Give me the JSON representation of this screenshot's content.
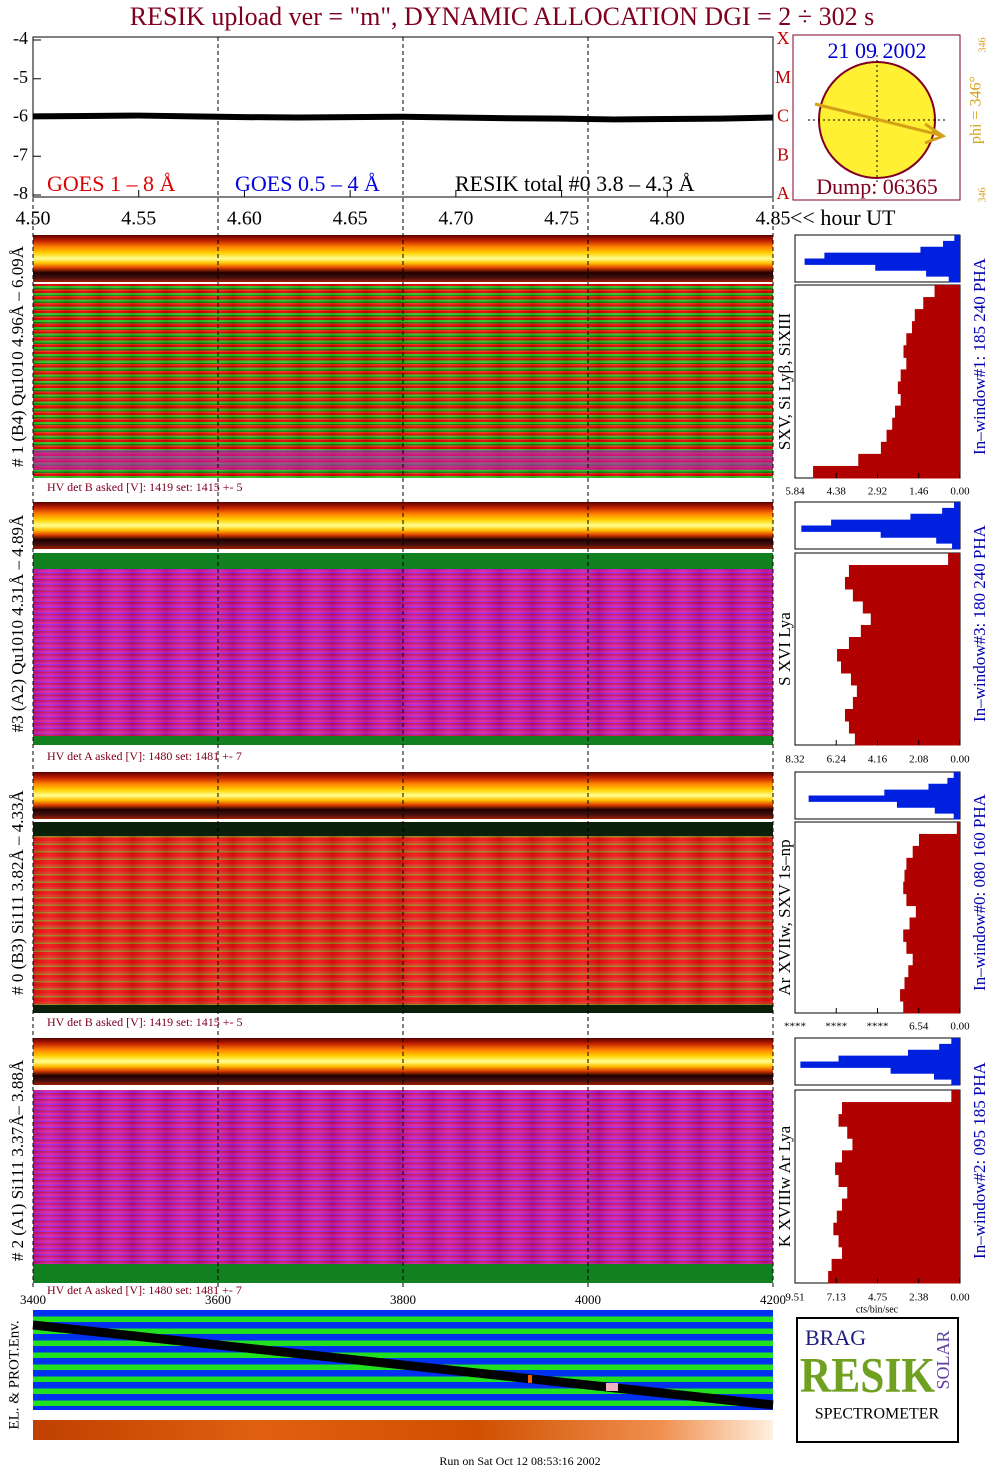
{
  "title": "RESIK upload ver = \"m\", DYNAMIC ALLOCATION  DGI =   2 ÷ 302 s",
  "chart_data": [
    {
      "type": "line",
      "x_label": "<< hour UT",
      "xlim": [
        4.5,
        4.85
      ],
      "xticks": [
        {
          "value": 4.5,
          "label": "4.50"
        },
        4.55,
        {
          "value": 4.6,
          "label": "4.60"
        },
        4.65,
        {
          "value": 4.7,
          "label": "4.70"
        },
        4.75,
        {
          "value": 4.8,
          "label": "4.80"
        },
        4.85
      ],
      "ylim": [
        -8,
        -4
      ],
      "yticks": [
        -8,
        -7,
        -6,
        -5,
        -4
      ],
      "flare_classes": [
        "A",
        "B",
        "C",
        "M",
        "X"
      ],
      "legend_labels": [
        {
          "name": "GOES 1 – 8 Å",
          "color": "#e00000"
        },
        {
          "name": "GOES 0.5 – 4 Å",
          "color": "#0000e0"
        }
      ],
      "x": [
        4.5,
        4.525,
        4.55,
        4.575,
        4.6,
        4.625,
        4.65,
        4.675,
        4.7,
        4.725,
        4.75,
        4.775,
        4.8,
        4.825,
        4.85
      ],
      "series": [
        {
          "name": "RESIK total #0  3.8 – 4.3 Å",
          "color": "#000000",
          "values": [
            -5.97,
            -5.96,
            -5.95,
            -5.97,
            -5.99,
            -6.0,
            -5.99,
            -5.98,
            -6.0,
            -6.02,
            -6.03,
            -6.05,
            -6.04,
            -6.03,
            -6.0
          ]
        }
      ],
      "x2lim": [
        3400,
        4200
      ],
      "x2ticks": [
        3400,
        3600,
        3800,
        4000,
        4200
      ]
    },
    {
      "type": "profile",
      "xlim": [
        5.84,
        0
      ],
      "xticks": [
        5.84,
        4.38,
        2.92,
        1.46,
        {
          "value": 0,
          "label": "0.00"
        }
      ],
      "series": [
        {
          "color": "#0020e0",
          "values": [
            0.2,
            0.6,
            1.4,
            4.8,
            5.5,
            3.0,
            1.2,
            0.4
          ]
        },
        {
          "color": "#b00000",
          "values": [
            0.9,
            1.3,
            1.6,
            1.7,
            1.9,
            2.0,
            1.9,
            2.1,
            2.2,
            2.1,
            2.3,
            2.4,
            2.6,
            2.8,
            3.6,
            5.2
          ]
        }
      ]
    },
    {
      "type": "profile",
      "xlim": [
        8.32,
        0
      ],
      "xticks": [
        8.32,
        6.24,
        4.16,
        2.08,
        {
          "value": 0,
          "label": "0.00"
        }
      ],
      "series": [
        {
          "color": "#0020e0",
          "values": [
            0.3,
            0.9,
            2.5,
            6.5,
            8.0,
            4.0,
            1.2,
            0.4
          ]
        },
        {
          "color": "#b00000",
          "values": [
            0.6,
            5.6,
            5.8,
            5.4,
            4.9,
            4.5,
            5.0,
            5.6,
            6.2,
            6.0,
            5.5,
            5.2,
            5.4,
            5.8,
            5.6,
            5.3
          ]
        }
      ]
    },
    {
      "type": "profile",
      "xlim": [
        26.16,
        0
      ],
      "xticks": [
        {
          "value": 26.16,
          "label": "****"
        },
        {
          "value": 19.62,
          "label": "****"
        },
        {
          "value": 13.08,
          "label": "****"
        },
        6.54,
        {
          "value": 0,
          "label": "0.00"
        }
      ],
      "series": [
        {
          "color": "#0020e0",
          "values": [
            1,
            2,
            5,
            12,
            24,
            10,
            4,
            1
          ]
        },
        {
          "color": "#b00000",
          "values": [
            0.5,
            6.5,
            7.5,
            8.5,
            8.8,
            9.0,
            8.5,
            7.0,
            8.0,
            9.0,
            8.5,
            7.5,
            8.2,
            8.8,
            9.5,
            9.0
          ]
        }
      ]
    },
    {
      "type": "profile",
      "xlim": [
        9.51,
        0
      ],
      "x_label": "cts/bin/sec",
      "xticks": [
        9.51,
        7.13,
        4.75,
        2.38,
        {
          "value": 0,
          "label": "0.00"
        }
      ],
      "series": [
        {
          "color": "#0020e0",
          "values": [
            0.5,
            1.2,
            3,
            7,
            9.2,
            4,
            1.5,
            0.5
          ]
        },
        {
          "color": "#b00000",
          "values": [
            0.5,
            6.8,
            7.0,
            6.5,
            6.2,
            6.8,
            7.2,
            7.0,
            6.5,
            6.8,
            7.1,
            7.3,
            7.0,
            6.8,
            7.4,
            7.6
          ]
        }
      ]
    }
  ],
  "panels": [
    {
      "channel": "# 1 (B4) Qu1010 4.96Å – 6.09Å",
      "hv": "HV det B asked [V]:  1419 set:  1415 +-    5",
      "lines": "SXV, Si Lyβ, SiXIII",
      "window": "In–window#1:  185 240 PHA"
    },
    {
      "channel": "#3 (A2) Qu1010  4.31Å – 4.89Å",
      "hv": "HV det A asked [V]:  1480 set:  1481 +-    7",
      "lines": "S XVI Lya",
      "window": "In–window#3:  180 240 PHA"
    },
    {
      "channel": "# 0 (B3) Si111  3.82Å – 4.33Å",
      "hv": "HV det B asked [V]:  1419 set:  1415 +-    5",
      "lines": "Ar XVIIw,  SXV 1s–np",
      "window": "In–window#0:  080 160 PHA"
    },
    {
      "channel": "# 2 (A1) Si111  3.37Å– 3.88Å",
      "hv": "HV det A asked [V]:  1480 set:  1481 +-    7",
      "lines": "K XVIIIw  Ar Lya",
      "window": "In–window#2:  095 185 PHA"
    }
  ],
  "sun": {
    "date": "21 09 2002",
    "dump": "Dump: 06365",
    "phi": "phi = 346°",
    "phi_top": "346",
    "phi_bottom": "346"
  },
  "env_label": "EL. & PROT.Env.",
  "logo": {
    "top": "BRAG",
    "main": "RESIK",
    "side": "SOLAR",
    "bottom": "SPECTROMETER"
  },
  "footer": "Run on Sat Oct 12 08:53:16 2002"
}
